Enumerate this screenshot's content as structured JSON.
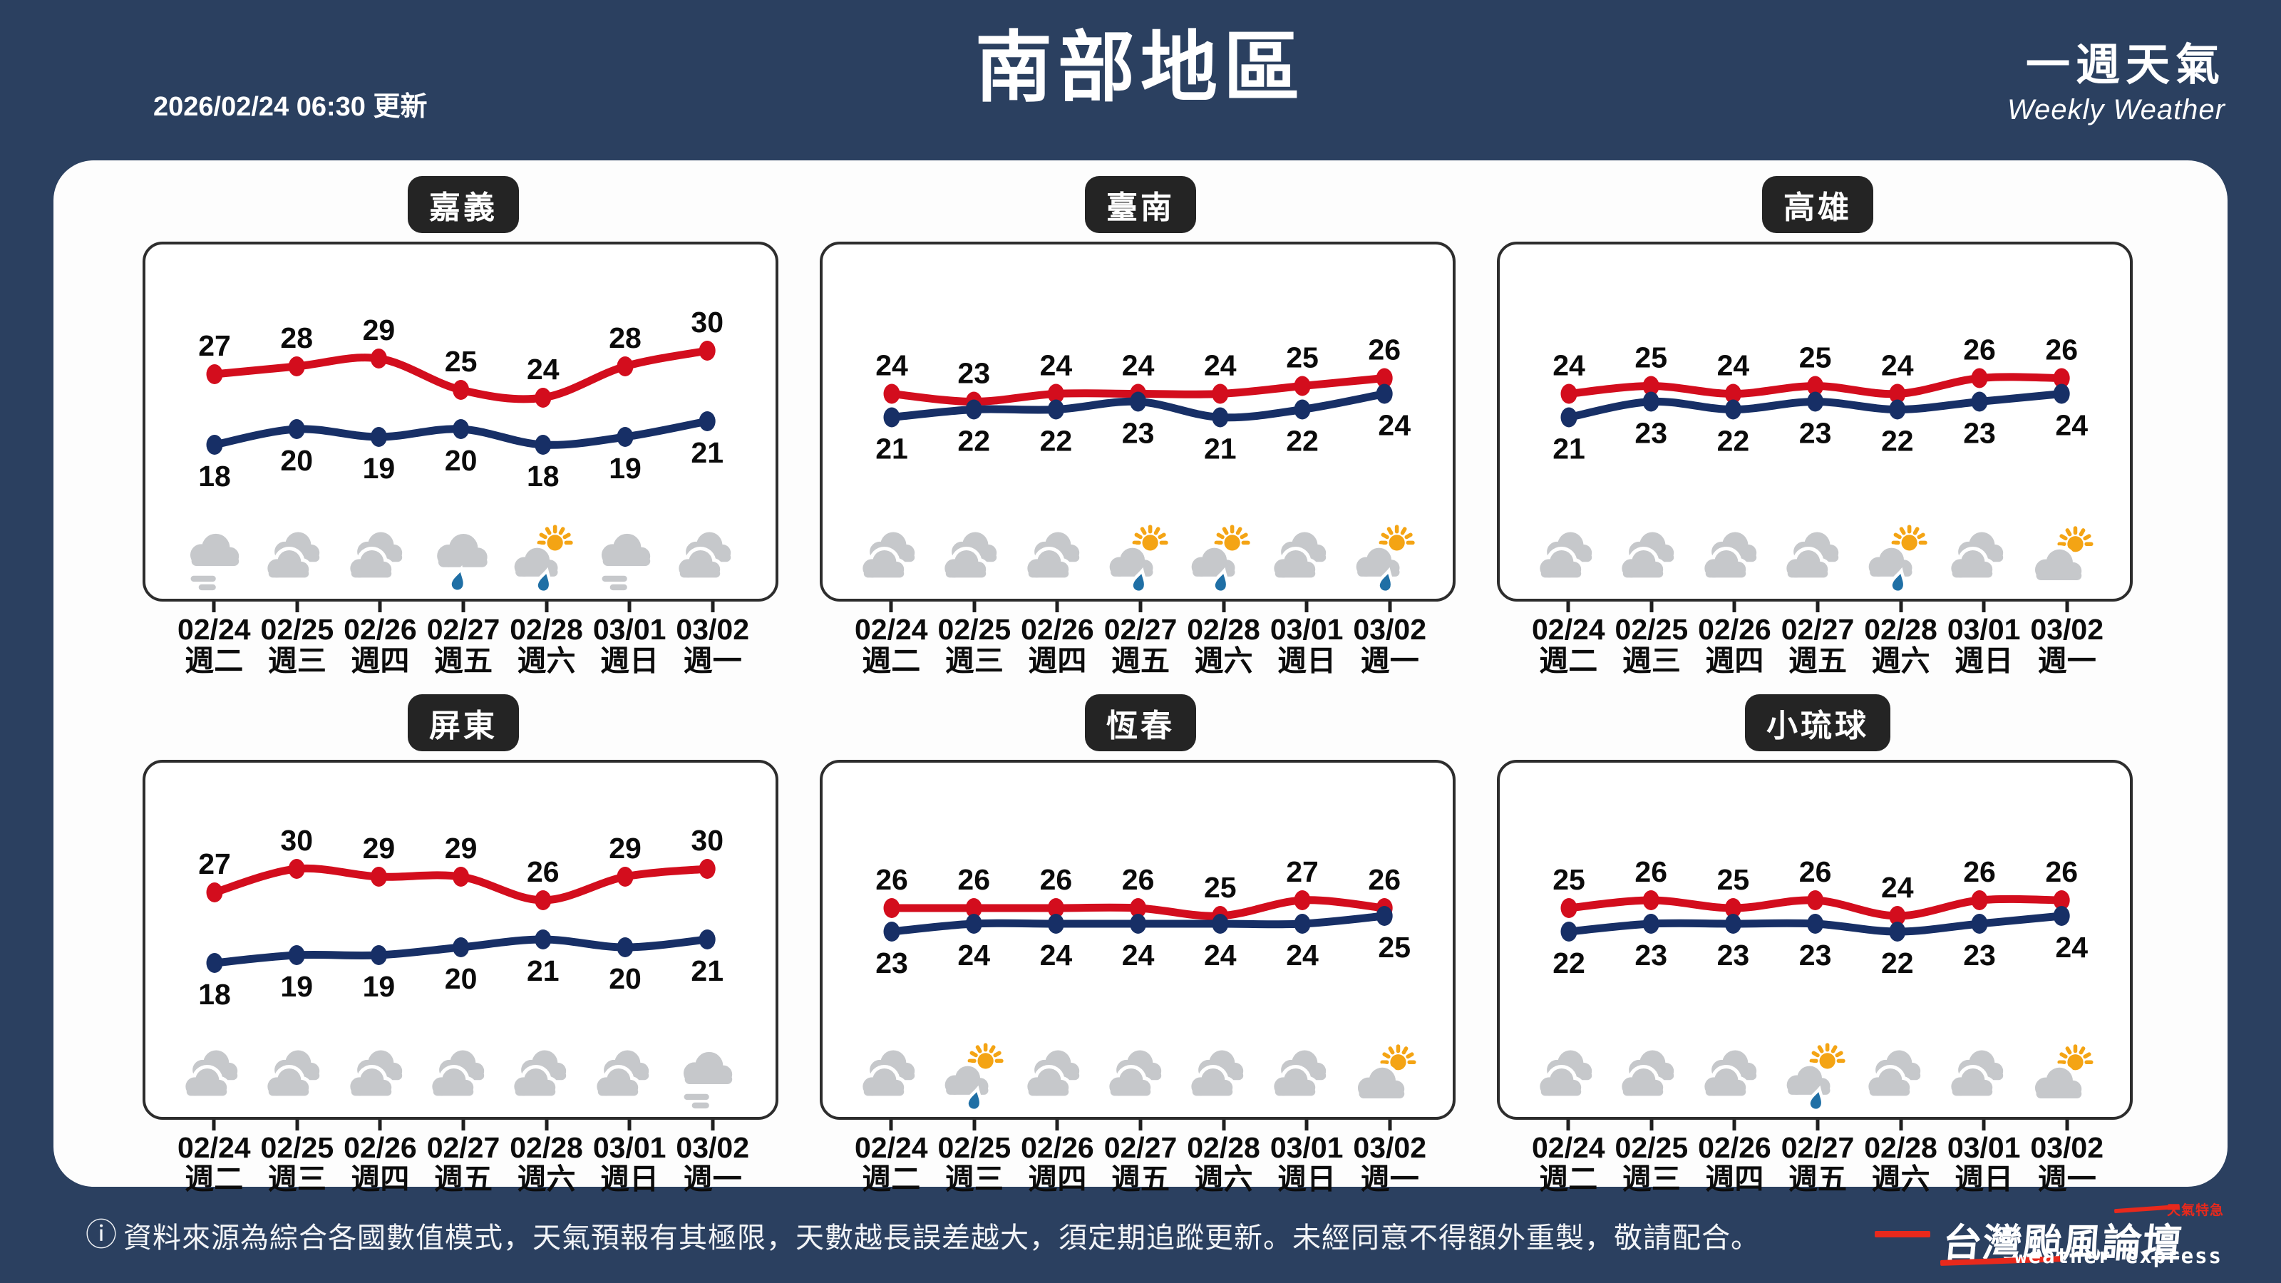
{
  "header": {
    "updated": "2026/02/24 06:30 更新",
    "title": "南部地區",
    "right_title": "一週天氣",
    "right_subtitle": "Weekly Weather"
  },
  "days": [
    {
      "date": "02/24",
      "weekday": "週二"
    },
    {
      "date": "02/25",
      "weekday": "週三"
    },
    {
      "date": "02/26",
      "weekday": "週四"
    },
    {
      "date": "02/27",
      "weekday": "週五"
    },
    {
      "date": "02/28",
      "weekday": "週六"
    },
    {
      "date": "03/01",
      "weekday": "週日"
    },
    {
      "date": "03/02",
      "weekday": "週一"
    }
  ],
  "colors": {
    "background": "#2b4060",
    "panel_bg": "#ffffff",
    "panel_border": "#2d2d2d",
    "high_line": "#d30d1d",
    "low_line": "#172f66",
    "label": "#0b0b0b",
    "cloud_gray": "#c6c8cb",
    "sun_amber": "#f4a414",
    "rain_drop": "#1f6fa5",
    "logo_red": "#e8291c"
  },
  "chart_data": [
    {
      "type": "line",
      "city": "嘉義",
      "x": [
        "02/24",
        "02/25",
        "02/26",
        "02/27",
        "02/28",
        "03/01",
        "03/02"
      ],
      "series": [
        {
          "name": "high",
          "color": "#d30d1d",
          "values": [
            27,
            28,
            29,
            25,
            24,
            28,
            30
          ]
        },
        {
          "name": "low",
          "color": "#172f66",
          "values": [
            18,
            20,
            19,
            20,
            18,
            19,
            21
          ]
        }
      ],
      "icons": [
        "cloudy-fog",
        "cloudy",
        "cloudy",
        "rain",
        "sun-cloud-rain",
        "cloudy-fog",
        "cloudy"
      ]
    },
    {
      "type": "line",
      "city": "臺南",
      "x": [
        "02/24",
        "02/25",
        "02/26",
        "02/27",
        "02/28",
        "03/01",
        "03/02"
      ],
      "series": [
        {
          "name": "high",
          "color": "#d30d1d",
          "values": [
            24,
            23,
            24,
            24,
            24,
            25,
            26
          ]
        },
        {
          "name": "low",
          "color": "#172f66",
          "values": [
            21,
            22,
            22,
            23,
            21,
            22,
            24
          ]
        }
      ],
      "icons": [
        "cloudy",
        "cloudy",
        "cloudy",
        "sun-cloud-rain",
        "sun-cloud-rain",
        "cloudy",
        "sun-cloud-rain"
      ]
    },
    {
      "type": "line",
      "city": "高雄",
      "x": [
        "02/24",
        "02/25",
        "02/26",
        "02/27",
        "02/28",
        "03/01",
        "03/02"
      ],
      "series": [
        {
          "name": "high",
          "color": "#d30d1d",
          "values": [
            24,
            25,
            24,
            25,
            24,
            26,
            26
          ]
        },
        {
          "name": "low",
          "color": "#172f66",
          "values": [
            21,
            23,
            22,
            23,
            22,
            23,
            24
          ]
        }
      ],
      "icons": [
        "cloudy",
        "cloudy",
        "cloudy",
        "cloudy",
        "sun-cloud-rain",
        "cloudy",
        "sun-cloud"
      ]
    },
    {
      "type": "line",
      "city": "屏東",
      "x": [
        "02/24",
        "02/25",
        "02/26",
        "02/27",
        "02/28",
        "03/01",
        "03/02"
      ],
      "series": [
        {
          "name": "high",
          "color": "#d30d1d",
          "values": [
            27,
            30,
            29,
            29,
            26,
            29,
            30
          ]
        },
        {
          "name": "low",
          "color": "#172f66",
          "values": [
            18,
            19,
            19,
            20,
            21,
            20,
            21
          ]
        }
      ],
      "icons": [
        "cloudy",
        "cloudy",
        "cloudy",
        "cloudy",
        "cloudy",
        "cloudy",
        "cloudy-fog"
      ]
    },
    {
      "type": "line",
      "city": "恆春",
      "x": [
        "02/24",
        "02/25",
        "02/26",
        "02/27",
        "02/28",
        "03/01",
        "03/02"
      ],
      "series": [
        {
          "name": "high",
          "color": "#d30d1d",
          "values": [
            26,
            26,
            26,
            26,
            25,
            27,
            26
          ]
        },
        {
          "name": "low",
          "color": "#172f66",
          "values": [
            23,
            24,
            24,
            24,
            24,
            24,
            25
          ]
        }
      ],
      "icons": [
        "cloudy",
        "sun-cloud-rain",
        "cloudy",
        "cloudy",
        "cloudy",
        "cloudy",
        "sun-cloud"
      ]
    },
    {
      "type": "line",
      "city": "小琉球",
      "x": [
        "02/24",
        "02/25",
        "02/26",
        "02/27",
        "02/28",
        "03/01",
        "03/02"
      ],
      "series": [
        {
          "name": "high",
          "color": "#d30d1d",
          "values": [
            25,
            26,
            25,
            26,
            24,
            26,
            26
          ]
        },
        {
          "name": "low",
          "color": "#172f66",
          "values": [
            22,
            23,
            23,
            23,
            22,
            23,
            24
          ]
        }
      ],
      "icons": [
        "cloudy",
        "cloudy",
        "cloudy",
        "sun-cloud-rain",
        "cloudy",
        "cloudy",
        "sun-cloud"
      ]
    }
  ],
  "footer": {
    "notice": "資料來源為綜合各國數值模式，天氣預報有其極限，天數越長誤差越大，須定期追蹤更新。未經同意不得額外重製，敬請配合。",
    "logo_title": "台灣颱風論壇",
    "logo_tag": "天氣特急",
    "logo_subtitle": "weather express"
  }
}
